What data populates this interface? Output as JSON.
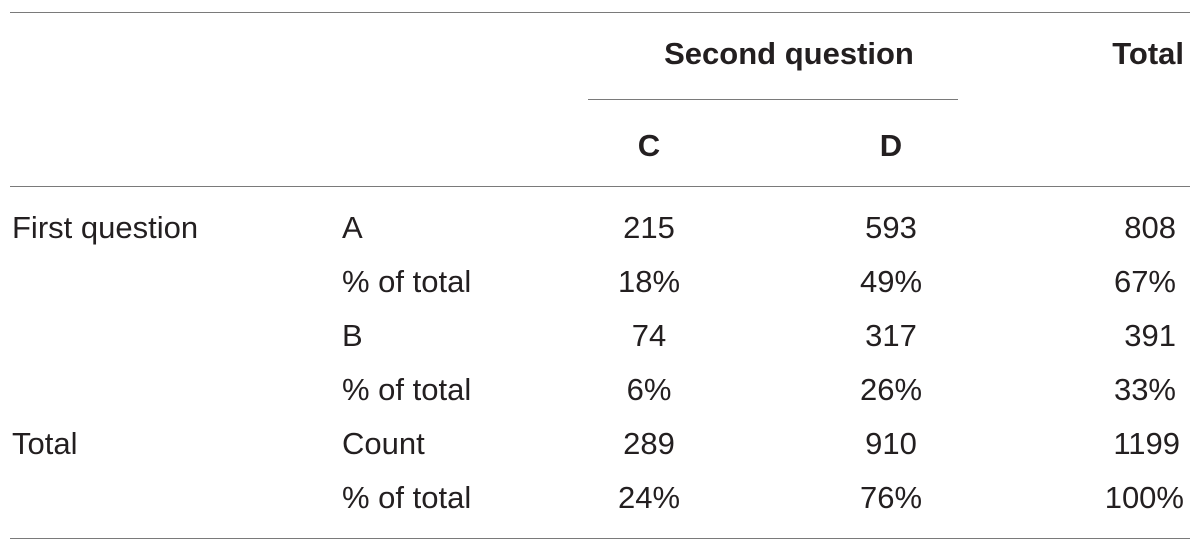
{
  "header": {
    "group_label": "Second question",
    "total_label": "Total",
    "columns": [
      "C",
      "D"
    ]
  },
  "rows": [
    {
      "group": "First question",
      "label": "A",
      "c": "215",
      "d": "593",
      "total": "808"
    },
    {
      "group": "",
      "label": "% of total",
      "c": "18%",
      "d": "49%",
      "total": "67%"
    },
    {
      "group": "",
      "label": "B",
      "c": "74",
      "d": "317",
      "total": "391"
    },
    {
      "group": "",
      "label": "% of total",
      "c": "6%",
      "d": "26%",
      "total": "33%"
    },
    {
      "group": "Total",
      "label": "Count",
      "c": "289",
      "d": "910",
      "total": "1199"
    },
    {
      "group": "",
      "label": "% of total",
      "c": "24%",
      "d": "76%",
      "total": "100%"
    }
  ]
}
